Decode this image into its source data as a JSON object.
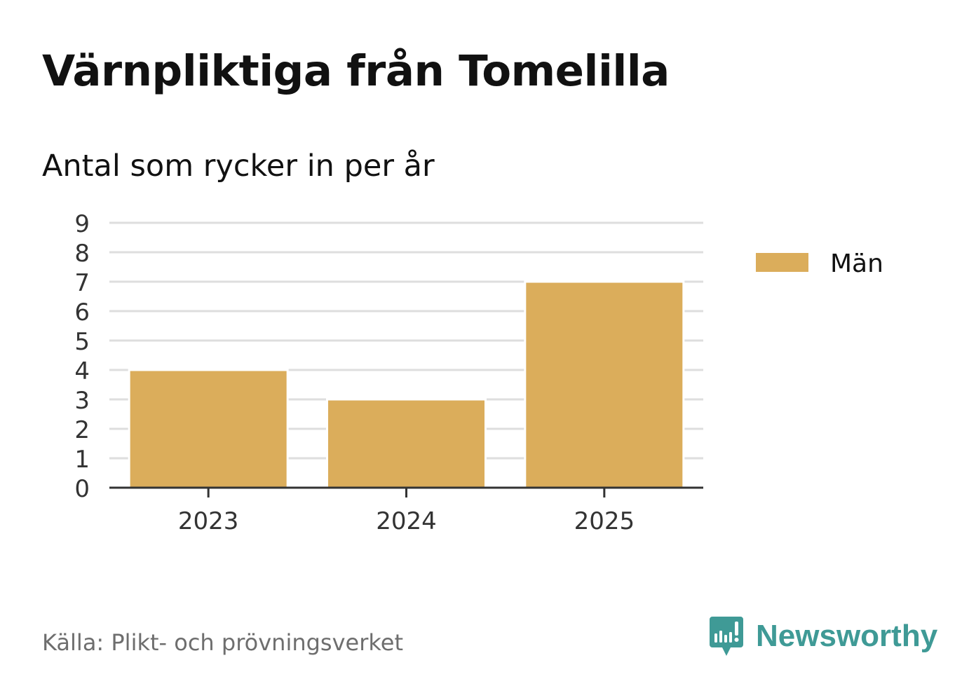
{
  "header": {
    "title": "Värnpliktiga från Tomelilla",
    "subtitle": "Antal som rycker in per år"
  },
  "chart_data": {
    "type": "bar",
    "title": "Värnpliktiga från Tomelilla",
    "subtitle": "Antal som rycker in per år",
    "categories": [
      "2023",
      "2024",
      "2025"
    ],
    "series": [
      {
        "name": "Män",
        "values": [
          4,
          3,
          7
        ],
        "color": "#dbad5b"
      }
    ],
    "xlabel": "",
    "ylabel": "",
    "ylim": [
      0,
      9
    ],
    "yticks": [
      0,
      1,
      2,
      3,
      4,
      5,
      6,
      7,
      8,
      9
    ],
    "grid": true,
    "legend": "right"
  },
  "footer": {
    "source": "Källa: Plikt- och prövningsverket",
    "brand": "Newsworthy",
    "brand_icon": "newsworthy-logo-icon",
    "brand_color": "#3f9a96"
  },
  "colors": {
    "bar": "#dbad5b",
    "grid": "#dedede",
    "axis": "#333333",
    "tick_text": "#333333"
  }
}
